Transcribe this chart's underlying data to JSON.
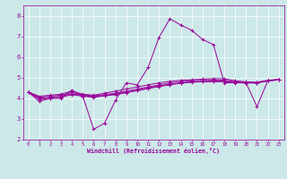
{
  "xlabel": "Windchill (Refroidissement éolien,°C)",
  "ylabel": "",
  "bg_color": "#cce8e8",
  "line_color": "#990099",
  "grid_color": "#ffffff",
  "xlim": [
    -0.5,
    23.5
  ],
  "ylim": [
    2,
    8.5
  ],
  "xticks": [
    0,
    1,
    2,
    3,
    4,
    5,
    6,
    7,
    8,
    9,
    10,
    11,
    12,
    13,
    14,
    15,
    16,
    17,
    18,
    19,
    20,
    21,
    22,
    23
  ],
  "yticks": [
    2,
    3,
    4,
    5,
    6,
    7,
    8
  ],
  "series": [
    [
      4.3,
      3.85,
      4.0,
      4.0,
      4.4,
      4.1,
      2.5,
      2.8,
      3.9,
      4.75,
      4.65,
      5.5,
      6.95,
      7.85,
      7.55,
      7.3,
      6.85,
      6.6,
      4.75,
      4.75,
      4.75,
      3.6,
      4.85,
      4.9
    ],
    [
      4.3,
      4.1,
      4.15,
      4.2,
      4.35,
      4.2,
      4.15,
      4.25,
      4.35,
      4.45,
      4.55,
      4.65,
      4.75,
      4.82,
      4.87,
      4.9,
      4.93,
      4.95,
      4.95,
      4.85,
      4.8,
      4.78,
      4.87,
      4.92
    ],
    [
      4.3,
      4.05,
      4.1,
      4.15,
      4.28,
      4.17,
      4.12,
      4.18,
      4.25,
      4.35,
      4.45,
      4.55,
      4.65,
      4.75,
      4.8,
      4.85,
      4.87,
      4.88,
      4.88,
      4.8,
      4.77,
      4.76,
      4.86,
      4.91
    ],
    [
      4.3,
      4.0,
      4.05,
      4.1,
      4.22,
      4.13,
      4.08,
      4.14,
      4.2,
      4.3,
      4.4,
      4.5,
      4.6,
      4.68,
      4.75,
      4.8,
      4.82,
      4.83,
      4.83,
      4.77,
      4.75,
      4.75,
      4.85,
      4.9
    ],
    [
      4.3,
      3.95,
      4.0,
      4.05,
      4.18,
      4.1,
      4.05,
      4.12,
      4.18,
      4.27,
      4.37,
      4.47,
      4.57,
      4.65,
      4.73,
      4.78,
      4.8,
      4.8,
      4.8,
      4.76,
      4.74,
      4.74,
      4.84,
      4.89
    ]
  ]
}
